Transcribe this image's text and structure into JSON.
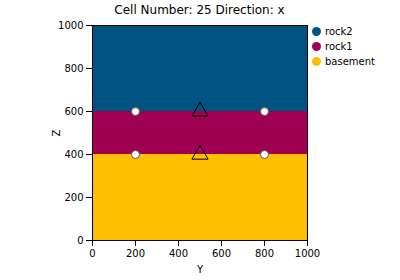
{
  "chart_data": {
    "type": "section",
    "title": "Cell Number: 25 Direction: x",
    "x_label": "Y",
    "y_label": "Z",
    "xlim": [
      0,
      1000
    ],
    "ylim": [
      0,
      1000
    ],
    "xticks": [
      0,
      200,
      400,
      600,
      800,
      1000
    ],
    "yticks": [
      0,
      200,
      400,
      600,
      800,
      1000
    ],
    "legend": "right",
    "series": [
      {
        "name": "rock2",
        "color": "#015482",
        "type": "area",
        "values": [
          600,
          1000
        ]
      },
      {
        "name": "rock1",
        "color": "#9f0052",
        "type": "area",
        "values": [
          400,
          600
        ]
      },
      {
        "name": "basement",
        "color": "#ffbe00",
        "type": "area",
        "values": [
          0,
          400
        ]
      },
      {
        "type": "scatter",
        "marker": "circle",
        "x": [
          200,
          800,
          200,
          800
        ],
        "values": [
          600,
          600,
          400,
          400
        ]
      },
      {
        "type": "scatter",
        "marker": "triangle",
        "x": [
          500,
          500
        ],
        "values": [
          600,
          400
        ]
      }
    ]
  }
}
